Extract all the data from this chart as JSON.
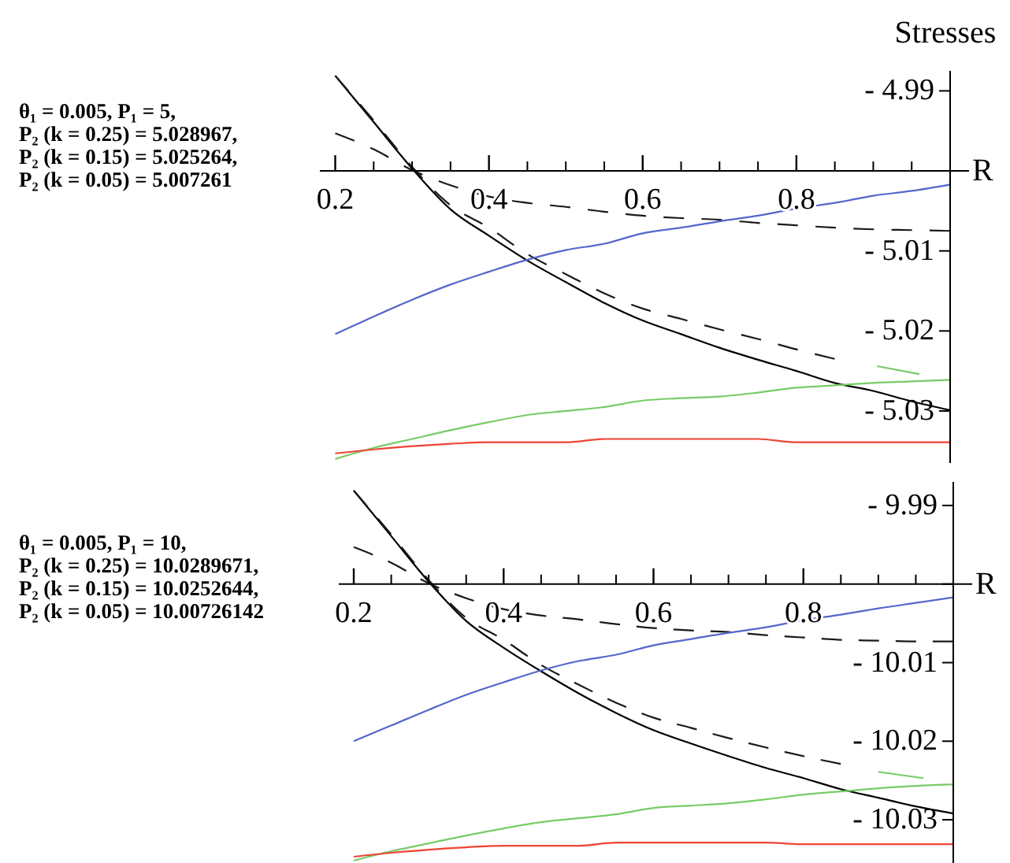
{
  "chart_data": [
    {
      "type": "line",
      "xlabel": "R",
      "ylabel": "Stresses",
      "annotations": [
        "θ₁ = 0.005, P₁ = 5,",
        "P₂ (k = 0.25) = 5.028967,",
        "P₂ (k = 0.15) = 5.025264,",
        "P₂ (k = 0.05) = 5.007261"
      ],
      "x": [
        0.2,
        0.25,
        0.3,
        0.35,
        0.4,
        0.45,
        0.5,
        0.55,
        0.6,
        0.65,
        0.7,
        0.75,
        0.8,
        0.85,
        0.9,
        0.95,
        1.0
      ],
      "xlim": [
        0.18,
        1.0
      ],
      "xticks": [
        0.2,
        0.4,
        0.6,
        0.8
      ],
      "ylim": [
        -5.0365,
        -4.9875
      ],
      "yticks": [
        {
          "value": -4.99,
          "label": "- 4.99"
        },
        {
          "value": -5.0,
          "label": null
        },
        {
          "value": -5.01,
          "label": "- 5.01"
        },
        {
          "value": -5.02,
          "label": "- 5.02"
        },
        {
          "value": -5.03,
          "label": "- 5.03"
        }
      ],
      "series": [
        {
          "color": "#000000",
          "line_style": "solid",
          "values": [
            -4.9881,
            -4.9939,
            -4.9997,
            -5.0048,
            -5.0081,
            -5.0112,
            -5.0139,
            -5.0165,
            -5.0187,
            -5.0204,
            -5.0221,
            -5.0236,
            -5.025,
            -5.0265,
            -5.0275,
            -5.0288,
            -5.0299
          ]
        },
        {
          "color": "#1a1a1a",
          "line_style": "dashed",
          "x": [
            0.2,
            0.25,
            0.3,
            0.35,
            0.4,
            0.45,
            0.5,
            0.55,
            0.6,
            0.65,
            0.7,
            0.75,
            0.8,
            0.85
          ],
          "values": [
            -4.9881,
            -4.9937,
            -4.9995,
            -5.0043,
            -5.0071,
            -5.0104,
            -5.0129,
            -5.0153,
            -5.0172,
            -5.0185,
            -5.0198,
            -5.021,
            -5.0223,
            -5.0235
          ]
        },
        {
          "color": "#1a1a1a",
          "line_style": "dashed",
          "values": [
            -4.9953,
            -4.9973,
            -4.9999,
            -5.0018,
            -5.0032,
            -5.004,
            -5.0045,
            -5.0051,
            -5.0056,
            -5.0059,
            -5.0061,
            -5.0065,
            -5.0068,
            -5.0071,
            -5.0073,
            -5.0074,
            -5.0075
          ]
        },
        {
          "color": "#5566cc",
          "line_style": "solid",
          "values": [
            -5.0204,
            -5.0182,
            -5.0161,
            -5.0142,
            -5.0126,
            -5.0111,
            -5.0099,
            -5.0091,
            -5.0078,
            -5.0071,
            -5.0063,
            -5.0056,
            -5.0047,
            -5.004,
            -5.0031,
            -5.0025,
            -5.0017
          ]
        },
        {
          "color": "#77cc66",
          "line_style": "solid",
          "values": [
            -5.036,
            -5.0346,
            -5.0335,
            -5.0324,
            -5.0314,
            -5.0305,
            -5.03,
            -5.0295,
            -5.0287,
            -5.0284,
            -5.0282,
            -5.0277,
            -5.0271,
            -5.0268,
            -5.0265,
            -5.0263,
            -5.0261
          ]
        },
        {
          "color": "#ee4433",
          "line_style": "solid",
          "values": [
            -5.0353,
            -5.0348,
            -5.0344,
            -5.0341,
            -5.0339,
            -5.0339,
            -5.0339,
            -5.0335,
            -5.0335,
            -5.0335,
            -5.0335,
            -5.0335,
            -5.0339,
            -5.0339,
            -5.0339,
            -5.0339,
            -5.0339
          ]
        },
        {
          "color": "#77cc66",
          "line_style": "solid",
          "x": [
            0.905,
            0.96
          ],
          "values": [
            -5.0244,
            -5.0254
          ]
        }
      ]
    },
    {
      "type": "line",
      "xlabel": "R",
      "annotations": [
        "θ₁ = 0.005, P₁ = 10,",
        "P₂ (k = 0.25) = 10.0289671,",
        "P₂ (k = 0.15) = 10.0252644,",
        "P₂ (k = 0.05) = 10.00726142"
      ],
      "x": [
        0.2,
        0.25,
        0.3,
        0.35,
        0.4,
        0.45,
        0.5,
        0.55,
        0.6,
        0.65,
        0.7,
        0.75,
        0.8,
        0.85,
        0.9,
        0.95,
        1.0
      ],
      "xlim": [
        0.18,
        1.0
      ],
      "xticks": [
        0.2,
        0.4,
        0.6,
        0.8
      ],
      "ylim": [
        -10.0355,
        -9.987
      ],
      "yticks": [
        {
          "value": -9.99,
          "label": "- 9.99"
        },
        {
          "value": -10.0,
          "label": null
        },
        {
          "value": -10.01,
          "label": "- 10.01"
        },
        {
          "value": -10.02,
          "label": "- 10.02"
        },
        {
          "value": -10.03,
          "label": "- 10.03"
        }
      ],
      "series": [
        {
          "color": "#000000",
          "line_style": "solid",
          "values": [
            -9.9881,
            -9.9939,
            -9.9997,
            -10.0047,
            -10.0081,
            -10.0111,
            -10.0139,
            -10.0164,
            -10.0186,
            -10.0203,
            -10.0219,
            -10.0234,
            -10.0247,
            -10.0261,
            -10.0272,
            -10.0283,
            -10.0292
          ]
        },
        {
          "color": "#1a1a1a",
          "line_style": "dashed",
          "x": [
            0.2,
            0.25,
            0.3,
            0.35,
            0.4,
            0.45,
            0.5,
            0.55,
            0.6,
            0.65,
            0.7,
            0.75,
            0.8,
            0.85
          ],
          "values": [
            -9.9881,
            -9.9937,
            -9.9995,
            -10.0043,
            -10.0071,
            -10.0103,
            -10.0128,
            -10.0151,
            -10.017,
            -10.0183,
            -10.0196,
            -10.0208,
            -10.0219,
            -10.0229
          ]
        },
        {
          "color": "#1a1a1a",
          "line_style": "dashed",
          "values": [
            -9.9953,
            -9.9973,
            -9.9999,
            -10.0018,
            -10.0032,
            -10.004,
            -10.0045,
            -10.0051,
            -10.0056,
            -10.0059,
            -10.0061,
            -10.0065,
            -10.0068,
            -10.0071,
            -10.0072,
            -10.0073,
            -10.0073
          ]
        },
        {
          "color": "#5566cc",
          "line_style": "solid",
          "values": [
            -10.02,
            -10.018,
            -10.016,
            -10.0141,
            -10.0125,
            -10.011,
            -10.0098,
            -10.009,
            -10.0078,
            -10.007,
            -10.0062,
            -10.0055,
            -10.0046,
            -10.0039,
            -10.0031,
            -10.0024,
            -10.0017
          ]
        },
        {
          "color": "#77cc66",
          "line_style": "solid",
          "values": [
            -10.0352,
            -10.034,
            -10.033,
            -10.032,
            -10.0311,
            -10.0303,
            -10.0298,
            -10.0293,
            -10.0285,
            -10.0282,
            -10.0279,
            -10.0274,
            -10.0268,
            -10.0264,
            -10.026,
            -10.0257,
            -10.0255
          ]
        },
        {
          "color": "#ee4433",
          "line_style": "solid",
          "values": [
            -10.0347,
            -10.0342,
            -10.0338,
            -10.0335,
            -10.0333,
            -10.0333,
            -10.0333,
            -10.0329,
            -10.0329,
            -10.0329,
            -10.0329,
            -10.0329,
            -10.0331,
            -10.0331,
            -10.0331,
            -10.0331,
            -10.0331
          ]
        },
        {
          "color": "#77cc66",
          "line_style": "solid",
          "x": [
            0.9,
            0.96
          ],
          "values": [
            -10.0239,
            -10.0247
          ]
        }
      ]
    }
  ]
}
